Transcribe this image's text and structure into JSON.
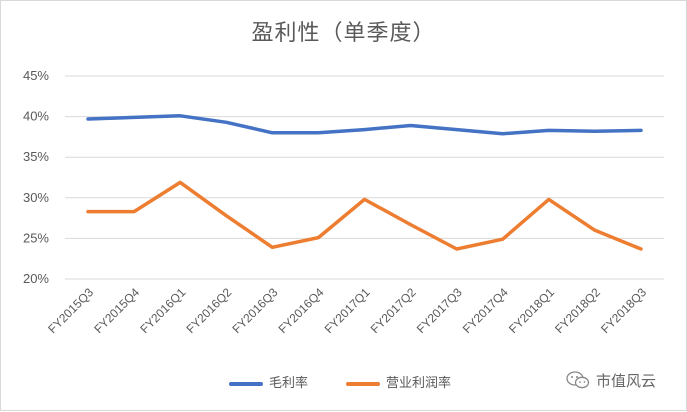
{
  "chart_data": {
    "type": "line",
    "title": "盈利性（单季度）",
    "categories": [
      "FY2015Q3",
      "FY2015Q4",
      "FY2016Q1",
      "FY2016Q2",
      "FY2016Q3",
      "FY2016Q4",
      "FY2017Q1",
      "FY2017Q2",
      "FY2017Q3",
      "FY2017Q4",
      "FY2018Q1",
      "FY2018Q2",
      "FY2018Q3"
    ],
    "series": [
      {
        "name": "毛利率",
        "color": "#4472c4",
        "values": [
          39.7,
          39.9,
          40.1,
          39.3,
          38.0,
          38.0,
          38.4,
          38.9,
          38.4,
          37.9,
          38.3,
          38.2,
          38.3
        ]
      },
      {
        "name": "营业利润率",
        "color": "#ed7d31",
        "values": [
          28.3,
          28.3,
          31.9,
          27.8,
          23.9,
          25.1,
          29.8,
          26.7,
          23.7,
          24.9,
          29.8,
          26.0,
          23.7
        ]
      }
    ],
    "ylim": [
      20,
      45
    ],
    "yticks": [
      "20%",
      "25%",
      "30%",
      "35%",
      "40%",
      "45%"
    ],
    "xlabel": "",
    "ylabel": "",
    "grid": true,
    "legend_position": "bottom"
  },
  "watermark": {
    "text": "市值风云",
    "icon": "wechat-icon"
  }
}
